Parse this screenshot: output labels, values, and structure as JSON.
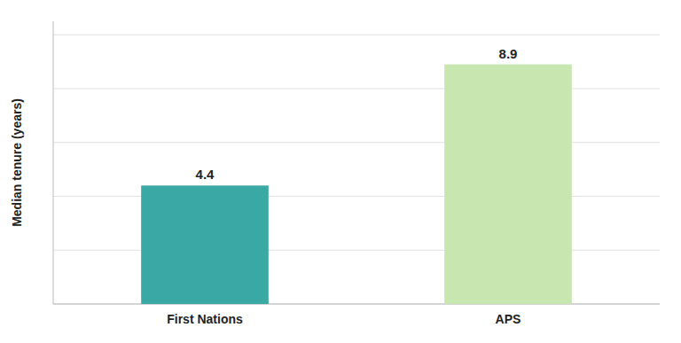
{
  "chart_data": {
    "type": "bar",
    "categories": [
      "First Nations",
      "APS"
    ],
    "values": [
      4.4,
      8.9
    ],
    "colors": [
      "#3aA8A4",
      "#c8e6b0"
    ],
    "ylabel": "Median tenure (years)",
    "ylim": [
      0,
      10.5
    ],
    "yticks": [
      0,
      2,
      4,
      6,
      8,
      10
    ],
    "grid": true,
    "data_labels": true,
    "tick_labels": "x"
  }
}
